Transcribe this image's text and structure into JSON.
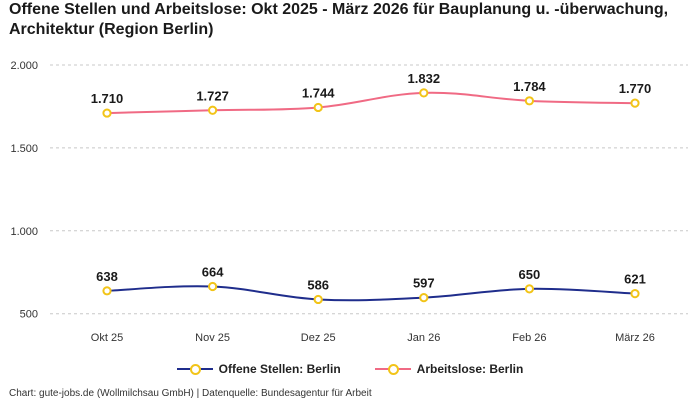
{
  "title": "Offene Stellen und Arbeitslose: Okt 2025 - März 2026 für Bauplanung u. -überwachung, Architektur (Region Berlin)",
  "source": "Chart: gute-jobs.de (Wollmilchsau GmbH) | Datenquelle: Bundesagentur für Arbeit",
  "colors": {
    "offene": "#1f2d8c",
    "arbeitslose": "#f06a84",
    "marker": "#f2c418",
    "grid": "#c8c8c8"
  },
  "chart_data": {
    "type": "line",
    "categories": [
      "Okt 25",
      "Nov 25",
      "Dez 25",
      "Jan 26",
      "Feb 26",
      "März 26"
    ],
    "yticks": [
      {
        "value": 500,
        "label": "500"
      },
      {
        "value": 1000,
        "label": "1.000"
      },
      {
        "value": 1500,
        "label": "1.500"
      },
      {
        "value": 2000,
        "label": "2.000"
      }
    ],
    "ylim": [
      450,
      2000
    ],
    "grid": true,
    "legend_position": "bottom",
    "series": [
      {
        "name": "Offene Stellen: Berlin",
        "key": "offene",
        "values": [
          638,
          664,
          586,
          597,
          650,
          621
        ],
        "labels": [
          "638",
          "664",
          "586",
          "597",
          "650",
          "621"
        ]
      },
      {
        "name": "Arbeitslose: Berlin",
        "key": "arbeitslose",
        "values": [
          1710,
          1727,
          1744,
          1832,
          1784,
          1770
        ],
        "labels": [
          "1.710",
          "1.727",
          "1.744",
          "1.832",
          "1.784",
          "1.770"
        ]
      }
    ]
  }
}
